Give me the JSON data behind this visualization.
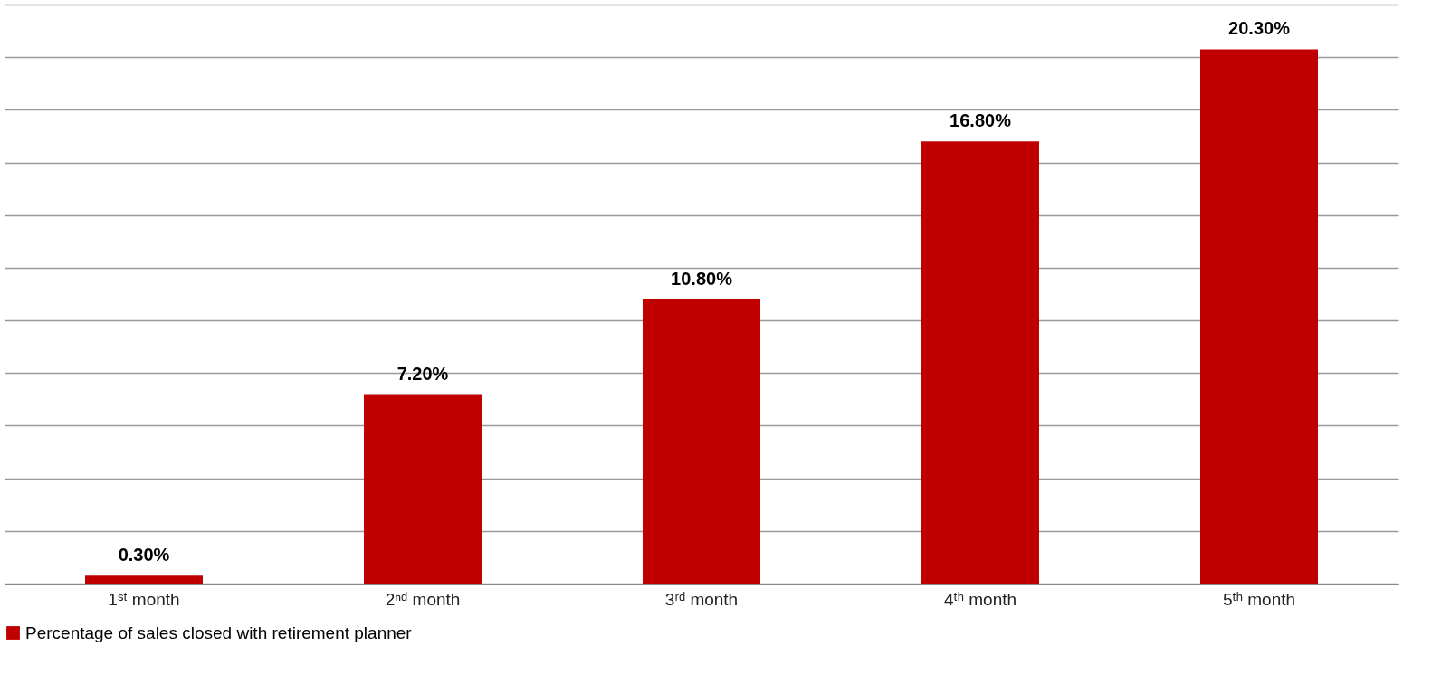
{
  "chart_data": {
    "type": "bar",
    "categories": [
      "1ˢᵗ month",
      "2ⁿᵈ month",
      "3ʳᵈ month",
      "4ᵗʰ month",
      "5ᵗʰ month"
    ],
    "series": [
      {
        "name": "Percentage of sales closed with retirement planner",
        "color": "#c00000",
        "values": [
          0.3,
          7.2,
          10.8,
          16.8,
          20.3
        ],
        "value_labels": [
          "0.30%",
          "7.20%",
          "10.80%",
          "16.80%",
          "20.30%"
        ]
      }
    ],
    "ylim": [
      0,
      22
    ],
    "yticks": [
      {
        "value": 0,
        "label": null
      },
      {
        "value": 2,
        "label": null
      },
      {
        "value": 4,
        "label": null
      },
      {
        "value": 6,
        "label": null
      },
      {
        "value": 8,
        "label": null
      },
      {
        "value": 10,
        "label": null
      },
      {
        "value": 12,
        "label": null
      },
      {
        "value": 14,
        "label": null
      },
      {
        "value": 16,
        "label": null
      },
      {
        "value": 18,
        "label": null
      },
      {
        "value": 20,
        "label": null
      },
      {
        "value": 22,
        "label": null
      }
    ],
    "grid": "y",
    "tick_labels": "x",
    "legend": "bottom"
  }
}
